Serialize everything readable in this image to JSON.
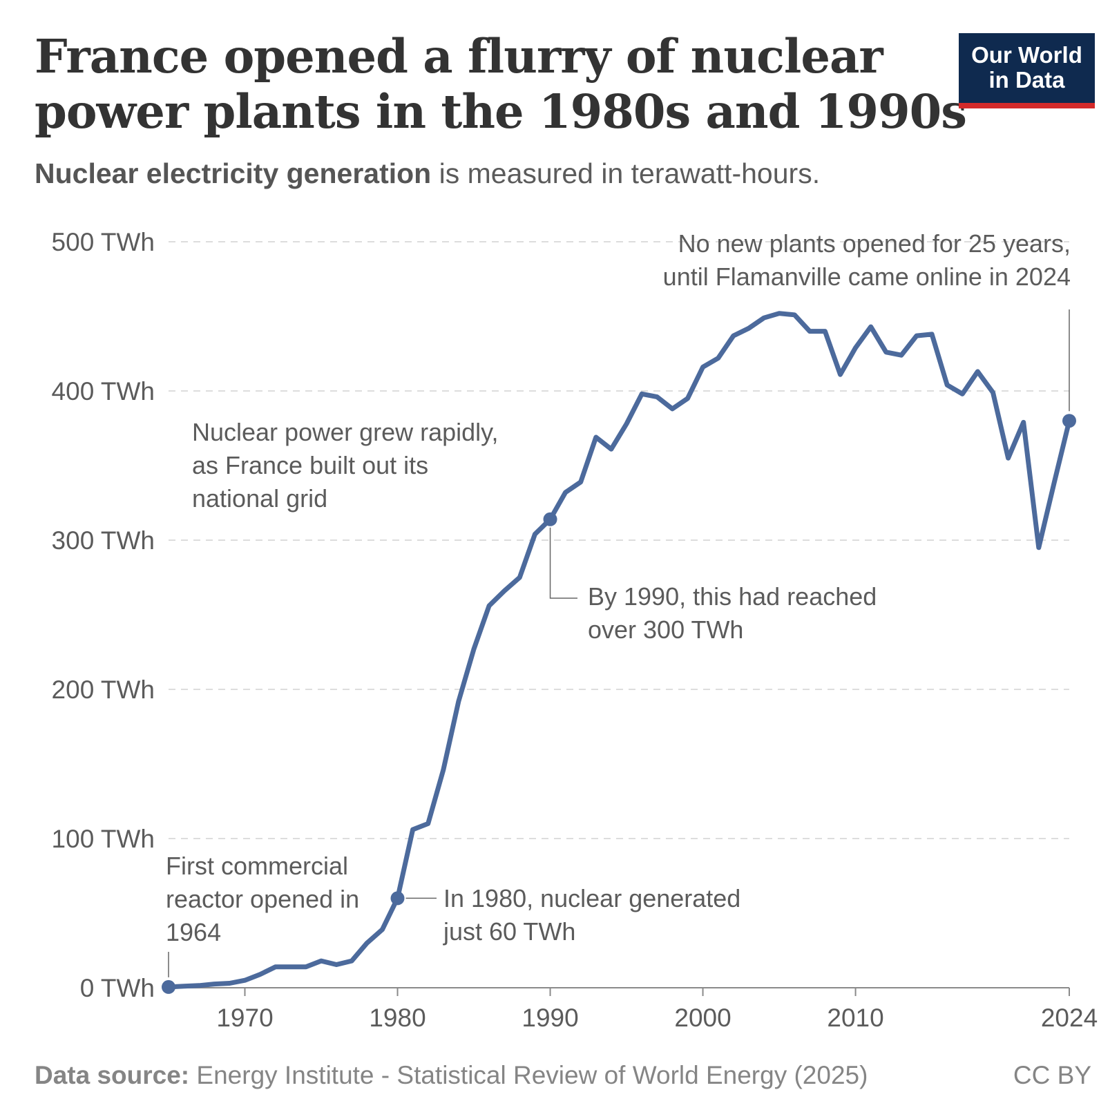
{
  "header": {
    "title_line1": "France opened a flurry of nuclear",
    "title_line2": "power plants in the 1980s and 1990s",
    "subtitle_bold": "Nuclear electricity generation",
    "subtitle_rest": " is measured in terawatt-hours."
  },
  "logo": {
    "line1": "Our World",
    "line2": "in Data"
  },
  "footer": {
    "source_label": "Data source:",
    "source_text": " Energy Institute - Statistical Review of World Energy (2025)",
    "license": "CC BY"
  },
  "colors": {
    "line": "#4c6a9c",
    "grid": "#dddddd",
    "text": "#5b5b5b",
    "axis": "#8a8a8a"
  },
  "chart_data": {
    "type": "line",
    "title": "France opened a flurry of nuclear power plants in the 1980s and 1990s",
    "ylabel": "Nuclear electricity generation (TWh)",
    "xlim": [
      1965,
      2024
    ],
    "ylim": [
      0,
      500
    ],
    "y_ticks": [
      0,
      100,
      200,
      300,
      400,
      500
    ],
    "y_tick_labels": [
      "0 TWh",
      "100 TWh",
      "200 TWh",
      "300 TWh",
      "400 TWh",
      "500 TWh"
    ],
    "x_ticks": [
      1970,
      1980,
      1990,
      2000,
      2010,
      2024
    ],
    "x_tick_labels": [
      "1970",
      "1980",
      "1990",
      "2000",
      "2010",
      "2024"
    ],
    "grid": true,
    "series": [
      {
        "name": "France",
        "x": [
          1965,
          1966,
          1967,
          1968,
          1969,
          1970,
          1971,
          1972,
          1973,
          1974,
          1975,
          1976,
          1977,
          1978,
          1979,
          1980,
          1981,
          1982,
          1983,
          1984,
          1985,
          1986,
          1987,
          1988,
          1989,
          1990,
          1991,
          1992,
          1993,
          1994,
          1995,
          1996,
          1997,
          1998,
          1999,
          2000,
          2001,
          2002,
          2003,
          2004,
          2005,
          2006,
          2007,
          2008,
          2009,
          2010,
          2011,
          2012,
          2013,
          2014,
          2015,
          2016,
          2017,
          2018,
          2019,
          2020,
          2021,
          2022,
          2023,
          2024
        ],
        "values": [
          0.5,
          1,
          1.5,
          2.5,
          3,
          5,
          9,
          14,
          14,
          14,
          18,
          15.5,
          18,
          30,
          39,
          60,
          106,
          110,
          146,
          192,
          227,
          256,
          266,
          275,
          304,
          314,
          332,
          339,
          369,
          361,
          378,
          398,
          396,
          388,
          395,
          416,
          422,
          437,
          442,
          449,
          452,
          451,
          440,
          440,
          411,
          429,
          443,
          426,
          424,
          437,
          438,
          404,
          398,
          413,
          399,
          355,
          379,
          295,
          338,
          380
        ]
      }
    ],
    "highlight_points": [
      {
        "x": 1965,
        "y": 0.5
      },
      {
        "x": 1980,
        "y": 60
      },
      {
        "x": 1990,
        "y": 314
      },
      {
        "x": 2024,
        "y": 380
      }
    ],
    "annotations": [
      {
        "id": "a1964",
        "lines": [
          "First commercial",
          "reactor opened in",
          "1964"
        ]
      },
      {
        "id": "a1980",
        "lines": [
          "In 1980, nuclear generated",
          "just 60 TWh"
        ]
      },
      {
        "id": "a1990",
        "lines": [
          "By 1990, this had reached",
          "over 300 TWh"
        ]
      },
      {
        "id": "agrowth",
        "lines": [
          "Nuclear power grew rapidly,",
          "as France built out its",
          "national grid"
        ]
      },
      {
        "id": "a2024",
        "lines": [
          "No new plants opened for 25 years,",
          "until Flamanville came online in 2024"
        ]
      }
    ]
  }
}
